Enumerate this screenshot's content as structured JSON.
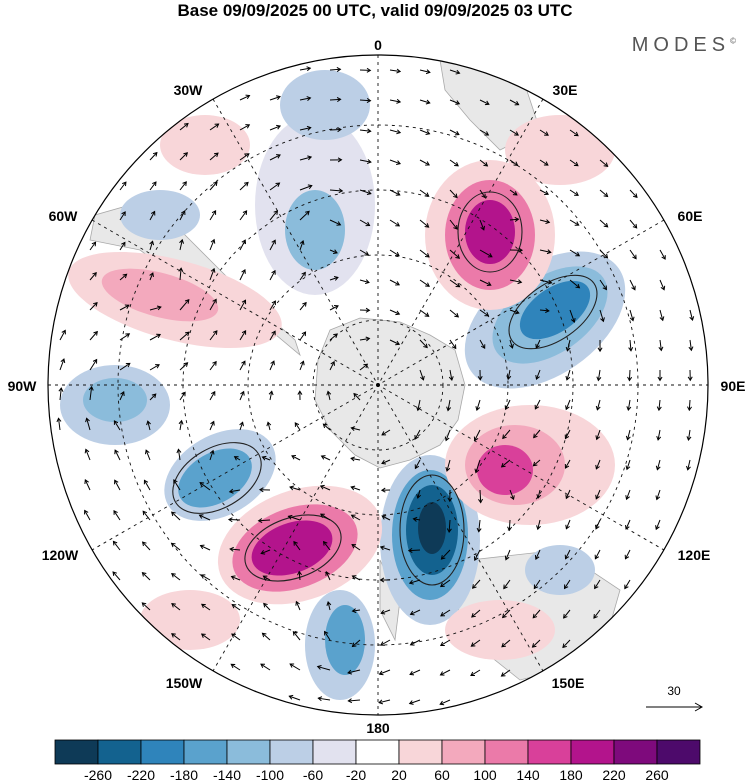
{
  "title": "Base 09/09/2025 00 UTC, valid 09/09/2025 03 UTC",
  "brand": "MODES",
  "brand_mark": "©",
  "longitude_labels": [
    "0",
    "30E",
    "60E",
    "90E",
    "120E",
    "150E",
    "180",
    "150W",
    "120W",
    "90W",
    "60W",
    "30W"
  ],
  "vector_scale_label": "30",
  "colorbar": {
    "tick_labels": [
      "-260",
      "-220",
      "-180",
      "-140",
      "-100",
      "-60",
      "-20",
      "20",
      "60",
      "100",
      "140",
      "180",
      "220",
      "260"
    ],
    "colors": [
      "#0e3a57",
      "#13628f",
      "#2f84bb",
      "#5aa2cd",
      "#8bbcdb",
      "#bccfe6",
      "#e2e2ef",
      "#ffffff",
      "#f8d6d9",
      "#f3a9bd",
      "#eb7aa9",
      "#d9409a",
      "#b3148c",
      "#7e0a7c",
      "#4d0a6b"
    ]
  }
}
